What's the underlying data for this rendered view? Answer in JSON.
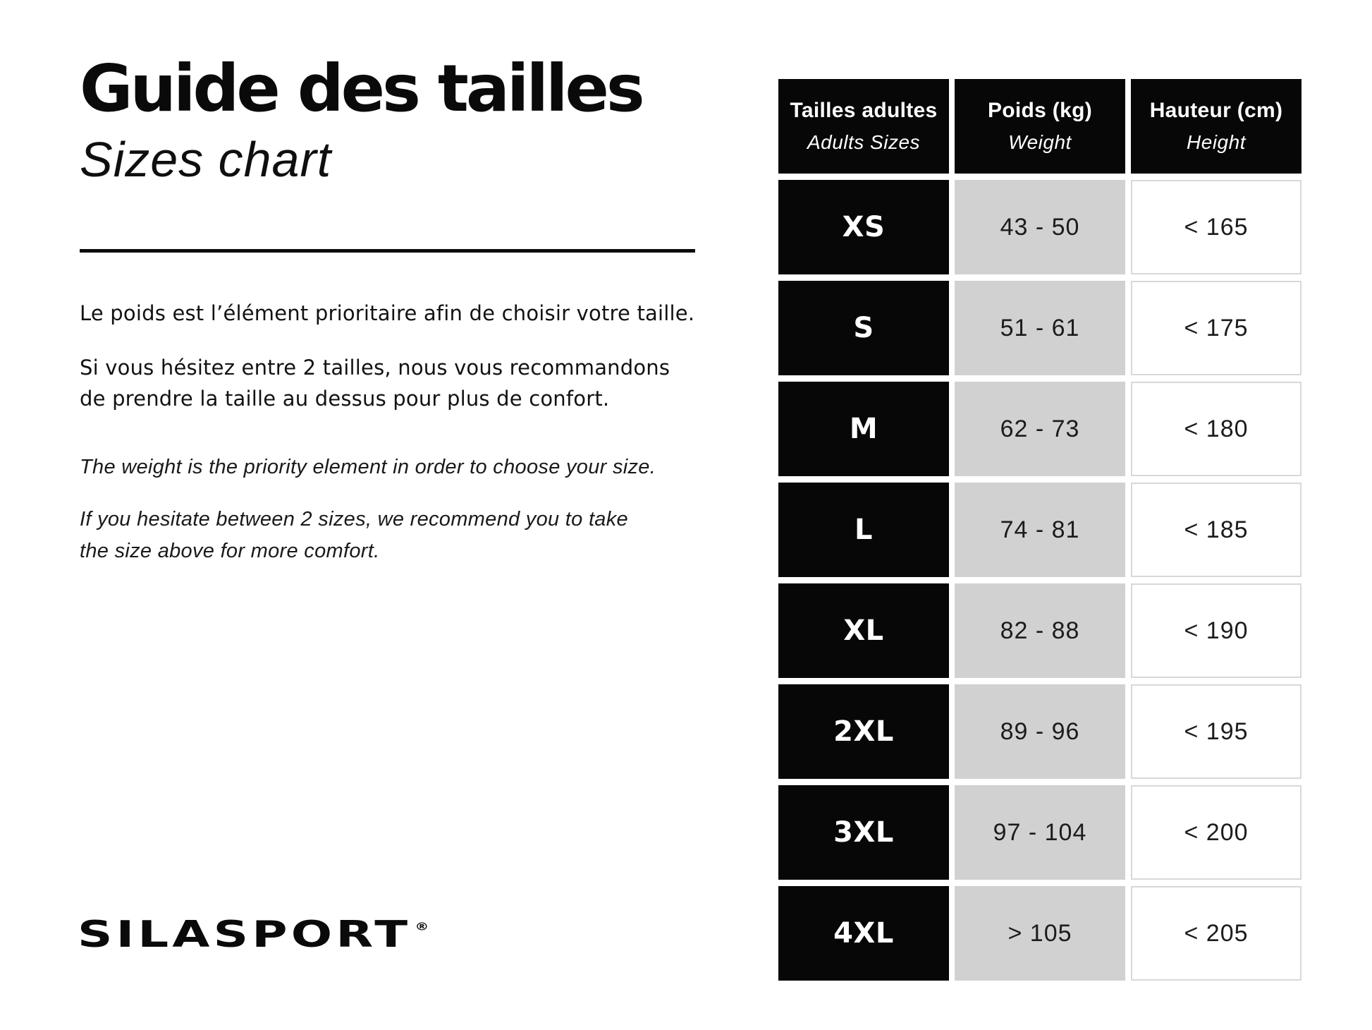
{
  "document": {
    "title_fr": "Guide des tailles",
    "title_en": "Sizes chart",
    "intro_fr": {
      "p1": "Le poids est l’élément prioritaire afin de choisir votre taille.",
      "p2_line1": "Si vous hésitez entre 2 tailles, nous vous recommandons",
      "p2_line2": "de prendre la taille au dessus pour plus de confort."
    },
    "intro_en": {
      "p1": "The weight is the priority element in order to choose your size.",
      "p2_line1": "If you hesitate between 2 sizes, we recommend you to take",
      "p2_line2": "the size above for more comfort."
    },
    "brand": {
      "logo_text": "SILASPORT",
      "registered_mark": "®"
    }
  },
  "size_table": {
    "columns": [
      {
        "label_fr": "Tailles adultes",
        "label_en": "Adults Sizes"
      },
      {
        "label_fr": "Poids (kg)",
        "label_en": "Weight"
      },
      {
        "label_fr": "Hauteur (cm)",
        "label_en": "Height"
      }
    ],
    "rows": [
      {
        "size": "XS",
        "weight_kg": "43 - 50",
        "height_cm": "< 165"
      },
      {
        "size": "S",
        "weight_kg": "51 - 61",
        "height_cm": "< 175"
      },
      {
        "size": "M",
        "weight_kg": "62 - 73",
        "height_cm": "< 180"
      },
      {
        "size": "L",
        "weight_kg": "74 - 81",
        "height_cm": "< 185"
      },
      {
        "size": "XL",
        "weight_kg": "82 - 88",
        "height_cm": "< 190"
      },
      {
        "size": "2XL",
        "weight_kg": "89 - 96",
        "height_cm": "< 195"
      },
      {
        "size": "3XL",
        "weight_kg": "97 - 104",
        "height_cm": "< 200"
      },
      {
        "size": "4XL",
        "weight_kg": "> 105",
        "height_cm": "< 205"
      }
    ]
  },
  "colors": {
    "cell_black": "#070707",
    "cell_gray": "#d1d1d1",
    "cell_white_border": "#d8d8d8",
    "text_dark": "#1c1c1c",
    "background": "#ffffff"
  }
}
